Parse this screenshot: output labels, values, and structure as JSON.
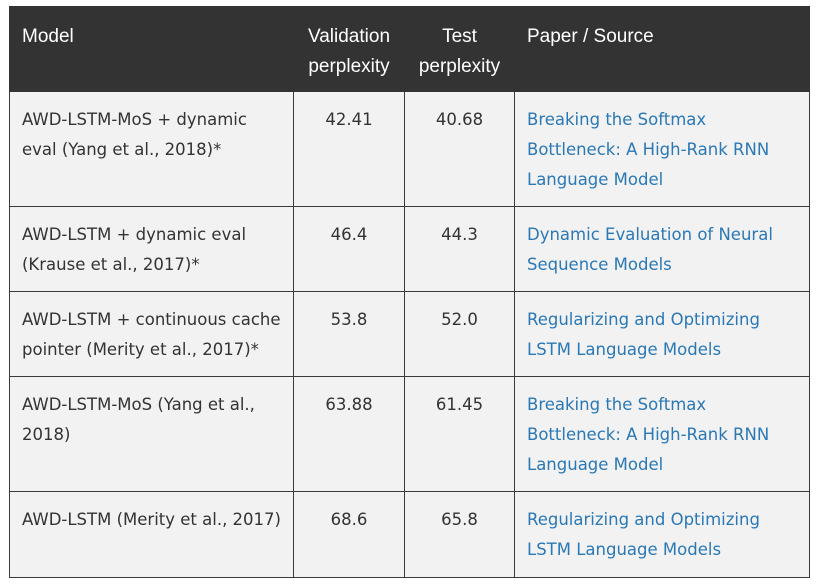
{
  "headers": {
    "model": "Model",
    "validation": "Validation perplexity",
    "test": "Test perplexity",
    "source": "Paper / Source"
  },
  "rows": [
    {
      "model": "AWD-LSTM-MoS + dynamic eval (Yang et al., 2018)*",
      "validation": "42.41",
      "test": "40.68",
      "source": "Breaking the Softmax Bottleneck: A High-Rank RNN Language Model"
    },
    {
      "model": "AWD-LSTM + dynamic eval (Krause et al., 2017)*",
      "validation": "46.4",
      "test": "44.3",
      "source": "Dynamic Evaluation of Neural Sequence Models"
    },
    {
      "model": "AWD-LSTM + continuous cache pointer (Merity et al., 2017)*",
      "validation": "53.8",
      "test": "52.0",
      "source": "Regularizing and Optimizing LSTM Language Models"
    },
    {
      "model": "AWD-LSTM-MoS (Yang et al., 2018)",
      "validation": "63.88",
      "test": "61.45",
      "source": "Breaking the Softmax Bottleneck: A High-Rank RNN Language Model"
    },
    {
      "model": "AWD-LSTM (Merity et al., 2017)",
      "validation": "68.6",
      "test": "65.8",
      "source": "Regularizing and Optimizing LSTM Language Models"
    }
  ],
  "colors": {
    "header_bg": "#333333",
    "row_bg": "#f2f2f2",
    "link": "#2a78b5"
  }
}
